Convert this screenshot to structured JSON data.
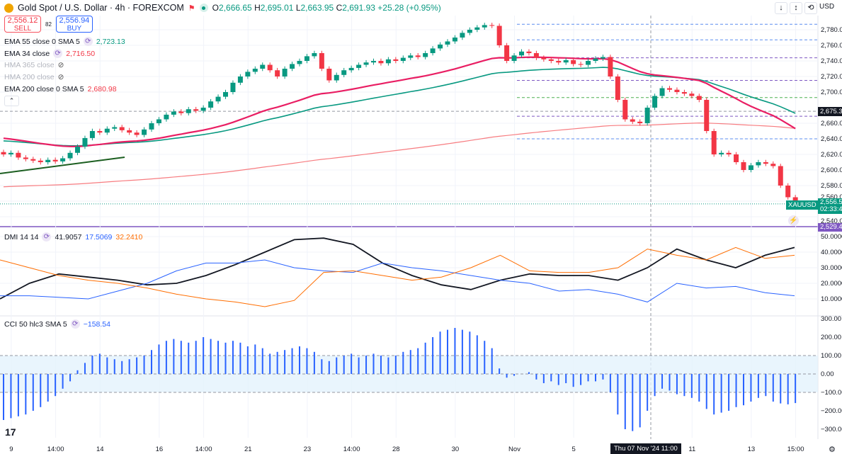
{
  "header": {
    "title": "Gold Spot / U.S. Dollar · 4h · FOREXCOM",
    "o_label": "O",
    "o": "2,666.65",
    "h_label": "H",
    "h": "2,695.01",
    "l_label": "L",
    "l": "2,663.95",
    "c_label": "C",
    "c": "2,691.93",
    "change": "+25.28 (+0.95%)"
  },
  "trade": {
    "sell_price": "2,556.12",
    "sell_label": "SELL",
    "spread": "82",
    "buy_price": "2,556.94",
    "buy_label": "BUY"
  },
  "indicators": [
    {
      "label": "EMA 55 close 0 SMA 5",
      "value": "2,723.13",
      "color": "#089981"
    },
    {
      "label": "EMA 34 close",
      "value": "2,716.50",
      "color": "#f23645"
    },
    {
      "label": "HMA 365 close",
      "value": ""
    },
    {
      "label": "HMA 200 close",
      "value": ""
    },
    {
      "label": "EMA 200 close 0 SMA 5",
      "value": "2,680.98",
      "color": "#f23645"
    }
  ],
  "dmi": {
    "label": "DMI 14 14",
    "adx": "41.9057",
    "plus": "17.5069",
    "minus": "32.2410"
  },
  "cci": {
    "label": "CCI 50 hlc3 SMA 5",
    "value": "−158.54"
  },
  "toolbar": {
    "currency": "USD"
  },
  "tags": {
    "crosshair_price": "2,675.3",
    "symbol": "XAUUSD",
    "last_price": "2,556.5",
    "countdown": "02:33:4",
    "level": "2,529.4",
    "crosshair_time": "Thu 07 Nov '24   11:00"
  },
  "colors": {
    "up": "#089981",
    "down": "#f23645",
    "ema34": "#e91e63",
    "ema55": "#089981",
    "ema200": "#f77c80",
    "adx": "#131722",
    "diplus": "#2962ff",
    "diminus": "#ff6d00",
    "cci": "#2962ff"
  },
  "chart_data": [
    {
      "type": "candlestick",
      "title": "Gold Spot / U.S. Dollar 4h",
      "ylim": [
        2529,
        2790
      ],
      "y_ticks": [
        "2,780.00",
        "2,760.00",
        "2,740.00",
        "2,720.00",
        "2,700.00",
        "2,660.00",
        "2,640.00",
        "2,620.00",
        "2,600.00",
        "2,580.00",
        "2,560.00",
        "2,540.00"
      ],
      "y_tick_values": [
        2780,
        2760,
        2740,
        2720,
        2700,
        2660,
        2640,
        2620,
        2600,
        2580,
        2560,
        2540
      ],
      "x_ticks": [
        "9",
        "14:00",
        "14",
        "16",
        "14:00",
        "21",
        "23",
        "14:00",
        "28",
        "30",
        "Nov",
        "5",
        "11",
        "13",
        "15:00"
      ],
      "x_tick_index": [
        2,
        8,
        14,
        22,
        28,
        34,
        42,
        48,
        54,
        62,
        70,
        78,
        94,
        102,
        108
      ],
      "closes": [
        2620,
        2622,
        2616,
        2614,
        2612,
        2610,
        2613,
        2611,
        2615,
        2622,
        2630,
        2641,
        2650,
        2648,
        2653,
        2655,
        2651,
        2648,
        2645,
        2652,
        2660,
        2665,
        2671,
        2675,
        2673,
        2678,
        2676,
        2680,
        2688,
        2694,
        2700,
        2712,
        2720,
        2726,
        2730,
        2735,
        2728,
        2720,
        2730,
        2736,
        2740,
        2746,
        2750,
        2730,
        2715,
        2722,
        2728,
        2731,
        2735,
        2738,
        2740,
        2737,
        2742,
        2740,
        2744,
        2747,
        2745,
        2750,
        2756,
        2761,
        2765,
        2770,
        2776,
        2780,
        2783,
        2786,
        2785,
        2760,
        2740,
        2747,
        2752,
        2750,
        2744,
        2742,
        2740,
        2738,
        2741,
        2736,
        2735,
        2740,
        2743,
        2745,
        2720,
        2690,
        2665,
        2662,
        2660,
        2680,
        2695,
        2705,
        2703,
        2700,
        2698,
        2695,
        2690,
        2650,
        2620,
        2622,
        2620,
        2610,
        2600,
        2606,
        2610,
        2608,
        2605,
        2580,
        2565,
        2557
      ],
      "levels": [
        2787,
        2767,
        2744,
        2715,
        2693,
        2669,
        2640
      ],
      "crosshair_price": 2675.3,
      "current_price": 2556.5,
      "alert_level": 2529.4
    },
    {
      "type": "line",
      "title": "DMI 14 14",
      "ylim": [
        0,
        55
      ],
      "y_ticks": [
        "50.0000",
        "40.0000",
        "30.0000",
        "20.0000",
        "10.0000"
      ],
      "y_tick_values": [
        50,
        40,
        30,
        20,
        10
      ],
      "series": [
        {
          "name": "ADX",
          "values": [
            10,
            20,
            26,
            24,
            22,
            19,
            20,
            25,
            32,
            40,
            48,
            49,
            45,
            33,
            25,
            19,
            16,
            22,
            26,
            25,
            25,
            22,
            30,
            42,
            35,
            30,
            38,
            43
          ]
        },
        {
          "name": "+DI",
          "values": [
            12,
            12,
            11,
            10,
            15,
            20,
            28,
            33,
            33,
            35,
            30,
            28,
            27,
            33,
            30,
            28,
            25,
            22,
            20,
            15,
            16,
            13,
            8,
            20,
            17,
            18,
            14,
            12
          ]
        },
        {
          "name": "-DI",
          "values": [
            35,
            30,
            25,
            22,
            20,
            17,
            13,
            10,
            8,
            5,
            9,
            27,
            28,
            25,
            22,
            24,
            30,
            38,
            28,
            27,
            27,
            30,
            42,
            38,
            35,
            43,
            36,
            38
          ]
        }
      ]
    },
    {
      "type": "bar",
      "title": "CCI 50 hlc3 SMA 5",
      "ylim": [
        -350,
        350
      ],
      "y_ticks": [
        "300.00",
        "200.00",
        "100.00",
        "0.00",
        "−100.00",
        "−200.00",
        "−300.00"
      ],
      "y_tick_values": [
        300,
        200,
        100,
        0,
        -100,
        -200,
        -300
      ],
      "values": [
        -250,
        -240,
        -230,
        -220,
        -200,
        -180,
        -150,
        -120,
        -80,
        -40,
        20,
        60,
        100,
        110,
        90,
        80,
        70,
        80,
        90,
        100,
        130,
        160,
        180,
        190,
        180,
        170,
        180,
        200,
        190,
        180,
        170,
        180,
        170,
        150,
        160,
        140,
        110,
        120,
        130,
        140,
        150,
        140,
        120,
        80,
        70,
        90,
        100,
        110,
        90,
        100,
        110,
        100,
        90,
        100,
        120,
        130,
        140,
        170,
        200,
        230,
        240,
        250,
        240,
        230,
        210,
        180,
        140,
        30,
        -20,
        -10,
        0,
        10,
        -30,
        -50,
        -40,
        -60,
        -50,
        -70,
        -60,
        -40,
        -40,
        -30,
        -100,
        -220,
        -300,
        -310,
        -290,
        -200,
        -120,
        -80,
        -90,
        -110,
        -120,
        -130,
        -150,
        -190,
        -220,
        -210,
        -200,
        -180,
        -170,
        -150,
        -130,
        -120,
        -150,
        -160,
        -165,
        -158
      ]
    }
  ]
}
